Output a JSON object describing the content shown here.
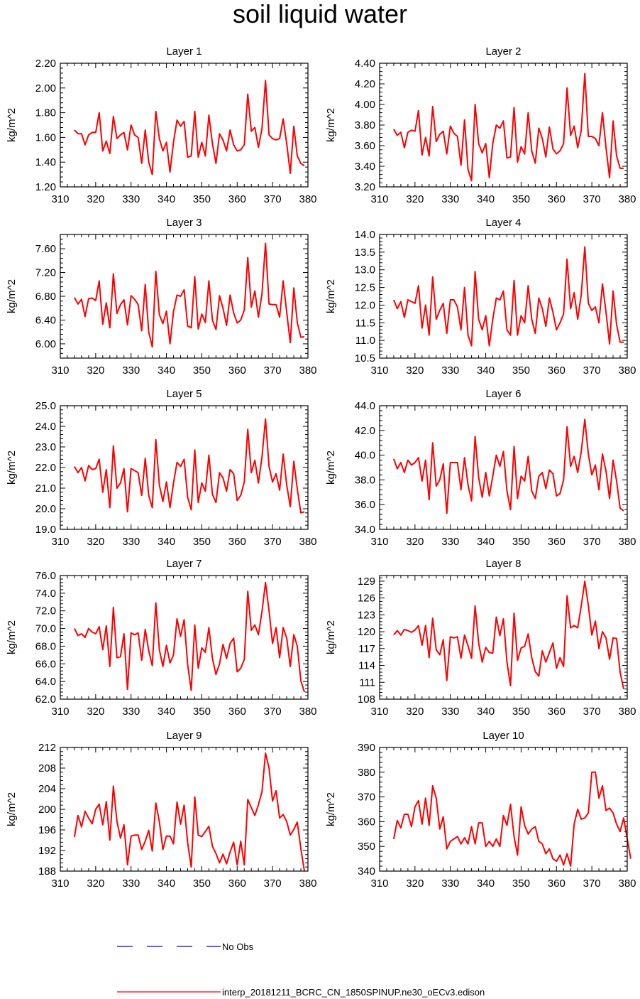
{
  "title": "soil liquid water",
  "ylabel": "kg/m^2",
  "line_color": "#ff0000",
  "obs_color": "#0000ff",
  "legend": {
    "obs_label": "No Obs",
    "model_label": "interp_20181211_BCRC_CN_1850SPINUP.ne30_oECv3.edison"
  },
  "chart_data": [
    {
      "type": "line",
      "title": "Layer 1",
      "xlabel": "",
      "ylabel": "kg/m^2",
      "xlim": [
        310,
        380
      ],
      "ylim": [
        1.2,
        2.2
      ],
      "xticks": [
        "310",
        "320",
        "330",
        "340",
        "350",
        "360",
        "370",
        "380"
      ],
      "yticks": [
        "1.20",
        "1.40",
        "1.60",
        "1.80",
        "2.00",
        "2.20"
      ],
      "x_start": 314,
      "series": [
        {
          "values": [
            1.66,
            1.63,
            1.63,
            1.54,
            1.62,
            1.64,
            1.64,
            1.8,
            1.49,
            1.57,
            1.47,
            1.77,
            1.59,
            1.62,
            1.64,
            1.5,
            1.7,
            1.62,
            1.6,
            1.39,
            1.66,
            1.4,
            1.3,
            1.81,
            1.59,
            1.49,
            1.56,
            1.32,
            1.56,
            1.74,
            1.69,
            1.73,
            1.44,
            1.45,
            1.81,
            1.44,
            1.56,
            1.45,
            1.78,
            1.55,
            1.39,
            1.63,
            1.58,
            1.49,
            1.66,
            1.54,
            1.49,
            1.5,
            1.54,
            1.95,
            1.65,
            1.68,
            1.52,
            1.67,
            2.06,
            1.62,
            1.59,
            1.58,
            1.59,
            1.75,
            1.55,
            1.31,
            1.69,
            1.45,
            1.39,
            1.37
          ]
        }
      ]
    },
    {
      "type": "line",
      "title": "Layer 2",
      "xlabel": "",
      "ylabel": "kg/m^2",
      "xlim": [
        310,
        380
      ],
      "ylim": [
        3.2,
        4.4
      ],
      "xticks": [
        "310",
        "320",
        "330",
        "340",
        "350",
        "360",
        "370",
        "380"
      ],
      "yticks": [
        "3.20",
        "3.40",
        "3.60",
        "3.80",
        "4.00",
        "4.20",
        "4.40"
      ],
      "x_start": 314,
      "series": [
        {
          "values": [
            3.76,
            3.7,
            3.73,
            3.58,
            3.73,
            3.75,
            3.74,
            3.94,
            3.51,
            3.68,
            3.5,
            3.98,
            3.64,
            3.71,
            3.74,
            3.52,
            3.79,
            3.72,
            3.69,
            3.41,
            3.85,
            3.37,
            3.26,
            4.0,
            3.62,
            3.53,
            3.62,
            3.29,
            3.62,
            3.8,
            3.77,
            3.84,
            3.48,
            3.49,
            3.97,
            3.44,
            3.59,
            3.52,
            3.92,
            3.55,
            3.43,
            3.77,
            3.67,
            3.49,
            3.78,
            3.57,
            3.52,
            3.55,
            3.62,
            4.16,
            3.7,
            3.79,
            3.58,
            3.75,
            4.3,
            3.69,
            3.69,
            3.67,
            3.6,
            3.92,
            3.58,
            3.29,
            3.84,
            3.5,
            3.38,
            3.38
          ]
        }
      ]
    },
    {
      "type": "line",
      "title": "Layer 3",
      "xlabel": "",
      "ylabel": "kg/m^2",
      "xlim": [
        310,
        380
      ],
      "ylim": [
        5.76,
        7.84
      ],
      "xticks": [
        "310",
        "320",
        "330",
        "340",
        "350",
        "360",
        "370",
        "380"
      ],
      "yticks": [
        "6.00",
        "6.40",
        "6.80",
        "7.20",
        "7.60"
      ],
      "x_start": 314,
      "series": [
        {
          "values": [
            6.78,
            6.67,
            6.75,
            6.46,
            6.76,
            6.77,
            6.73,
            7.06,
            6.33,
            6.69,
            6.27,
            7.18,
            6.51,
            6.66,
            6.74,
            6.32,
            6.81,
            6.75,
            6.66,
            6.22,
            7.0,
            6.2,
            5.95,
            7.22,
            6.49,
            6.34,
            6.55,
            6.0,
            6.54,
            6.82,
            6.8,
            6.91,
            6.3,
            6.27,
            7.13,
            6.25,
            6.5,
            6.36,
            7.06,
            6.4,
            6.24,
            6.81,
            6.6,
            6.31,
            6.82,
            6.52,
            6.35,
            6.4,
            6.57,
            7.45,
            6.62,
            6.89,
            6.45,
            6.84,
            7.69,
            6.67,
            6.66,
            6.66,
            6.45,
            7.06,
            6.53,
            6.02,
            6.94,
            6.36,
            6.11,
            6.12
          ]
        }
      ]
    },
    {
      "type": "line",
      "title": "Layer 4",
      "xlabel": "",
      "ylabel": "kg/m^2",
      "xlim": [
        310,
        380
      ],
      "ylim": [
        10.5,
        14.0
      ],
      "xticks": [
        "310",
        "320",
        "330",
        "340",
        "350",
        "360",
        "370",
        "380"
      ],
      "yticks": [
        "10.5",
        "11.0",
        "11.5",
        "12.0",
        "12.5",
        "13.0",
        "13.5",
        "14.0"
      ],
      "x_start": 314,
      "series": [
        {
          "values": [
            12.15,
            11.9,
            12.1,
            11.65,
            12.15,
            12.1,
            12.05,
            12.55,
            11.35,
            12.0,
            11.15,
            12.8,
            11.6,
            11.85,
            12.05,
            11.2,
            12.15,
            12.15,
            11.95,
            11.3,
            12.5,
            11.15,
            10.85,
            12.95,
            11.6,
            11.3,
            11.7,
            10.85,
            11.6,
            12.2,
            12.15,
            12.4,
            11.3,
            11.15,
            12.7,
            11.15,
            11.7,
            11.5,
            12.55,
            11.6,
            11.2,
            12.2,
            11.9,
            11.4,
            12.2,
            11.8,
            11.3,
            11.5,
            11.75,
            13.3,
            11.9,
            12.35,
            11.6,
            12.3,
            13.65,
            12.05,
            11.85,
            11.95,
            11.5,
            12.6,
            11.8,
            10.9,
            12.4,
            11.45,
            10.95,
            10.95
          ]
        }
      ]
    },
    {
      "type": "line",
      "title": "Layer 5",
      "xlabel": "",
      "ylabel": "kg/m^2",
      "xlim": [
        310,
        380
      ],
      "ylim": [
        19.0,
        25.0
      ],
      "xticks": [
        "310",
        "320",
        "330",
        "340",
        "350",
        "360",
        "370",
        "380"
      ],
      "yticks": [
        "19.0",
        "20.0",
        "21.0",
        "22.0",
        "23.0",
        "24.0",
        "25.0"
      ],
      "x_start": 314,
      "series": [
        {
          "values": [
            22.05,
            21.75,
            22.0,
            21.35,
            22.1,
            21.9,
            21.95,
            22.4,
            20.8,
            21.9,
            20.05,
            23.05,
            21.0,
            21.25,
            21.95,
            19.85,
            21.95,
            21.85,
            21.75,
            20.65,
            22.45,
            20.65,
            20.05,
            23.35,
            21.15,
            20.35,
            21.3,
            20.05,
            21.25,
            22.25,
            22.05,
            22.4,
            20.55,
            19.95,
            22.85,
            20.3,
            21.25,
            20.85,
            22.6,
            20.7,
            20.3,
            21.75,
            21.5,
            20.85,
            21.9,
            21.7,
            20.4,
            20.65,
            21.3,
            23.85,
            21.75,
            22.35,
            21.25,
            22.5,
            24.35,
            22.05,
            21.3,
            21.7,
            20.9,
            22.65,
            21.15,
            20.1,
            22.3,
            20.95,
            19.8,
            19.85
          ]
        }
      ]
    },
    {
      "type": "line",
      "title": "Layer 6",
      "xlabel": "",
      "ylabel": "kg/m^2",
      "xlim": [
        310,
        380
      ],
      "ylim": [
        34.0,
        44.0
      ],
      "xticks": [
        "310",
        "320",
        "330",
        "340",
        "350",
        "360",
        "370",
        "380"
      ],
      "yticks": [
        "34.0",
        "36.0",
        "38.0",
        "40.0",
        "42.0",
        "44.0"
      ],
      "x_start": 314,
      "series": [
        {
          "values": [
            39.7,
            38.9,
            39.4,
            38.6,
            39.6,
            39.2,
            39.4,
            39.8,
            37.9,
            39.6,
            36.4,
            41.0,
            37.5,
            38.0,
            39.3,
            35.3,
            39.4,
            39.4,
            39.4,
            37.2,
            39.8,
            37.6,
            36.3,
            41.5,
            38.2,
            36.6,
            38.6,
            36.7,
            38.3,
            40.0,
            39.1,
            40.3,
            37.1,
            35.6,
            40.7,
            36.5,
            38.3,
            37.9,
            39.9,
            37.1,
            36.5,
            38.3,
            38.6,
            37.3,
            38.8,
            38.5,
            36.7,
            36.9,
            38.0,
            42.3,
            39.1,
            39.9,
            38.6,
            40.3,
            42.9,
            40.1,
            38.4,
            39.2,
            37.2,
            40.1,
            38.7,
            36.5,
            39.6,
            37.9,
            35.7,
            35.5
          ]
        }
      ]
    },
    {
      "type": "line",
      "title": "Layer 7",
      "xlabel": "",
      "ylabel": "kg/m^2",
      "xlim": [
        310,
        380
      ],
      "ylim": [
        62.0,
        76.0
      ],
      "xticks": [
        "310",
        "320",
        "330",
        "340",
        "350",
        "360",
        "370",
        "380"
      ],
      "yticks": [
        "62.0",
        "64.0",
        "66.0",
        "68.0",
        "70.0",
        "72.0",
        "74.0",
        "76.0"
      ],
      "x_start": 314,
      "series": [
        {
          "values": [
            70.0,
            69.2,
            69.4,
            69.0,
            70.0,
            69.6,
            69.4,
            70.2,
            67.6,
            70.3,
            65.7,
            72.4,
            66.7,
            66.8,
            69.4,
            63.1,
            69.5,
            69.3,
            69.5,
            66.4,
            69.9,
            67.5,
            65.8,
            72.9,
            67.6,
            65.7,
            68.1,
            66.1,
            67.0,
            71.1,
            69.1,
            71.0,
            65.9,
            63.0,
            70.4,
            65.5,
            67.8,
            67.3,
            70.1,
            66.6,
            64.8,
            66.0,
            68.2,
            66.6,
            68.3,
            68.9,
            65.1,
            65.5,
            66.5,
            74.2,
            69.8,
            70.4,
            69.3,
            71.9,
            75.2,
            72.0,
            68.3,
            70.1,
            66.7,
            70.1,
            68.9,
            65.7,
            69.3,
            68.0,
            64.1,
            62.8
          ]
        }
      ]
    },
    {
      "type": "line",
      "title": "Layer 8",
      "xlabel": "",
      "ylabel": "kg/m^2",
      "xlim": [
        310,
        380
      ],
      "ylim": [
        108,
        130
      ],
      "xticks": [
        "310",
        "320",
        "330",
        "340",
        "350",
        "360",
        "370",
        "380"
      ],
      "yticks": [
        "108",
        "111",
        "114",
        "117",
        "120",
        "123",
        "126",
        "129"
      ],
      "x_start": 314,
      "series": [
        {
          "values": [
            119.4,
            120.2,
            119.4,
            120.4,
            120.2,
            119.9,
            120.3,
            121.1,
            117.6,
            121.1,
            115.4,
            122.4,
            116.8,
            115.9,
            118.6,
            111.3,
            119.1,
            118.9,
            119.1,
            115.3,
            119.4,
            117.5,
            115.3,
            124.6,
            118.0,
            114.6,
            117.2,
            116.3,
            116.2,
            122.6,
            119.3,
            122.3,
            114.6,
            110.4,
            123.3,
            114.9,
            117.1,
            117.4,
            119.6,
            115.4,
            112.9,
            112.1,
            116.6,
            114.6,
            116.3,
            118.0,
            113.5,
            115.4,
            113.8,
            126.4,
            120.7,
            121.1,
            120.7,
            124.6,
            129.0,
            124.7,
            119.4,
            121.9,
            117.0,
            120.0,
            118.9,
            115.1,
            118.9,
            118.8,
            112.8,
            109.8
          ]
        }
      ]
    },
    {
      "type": "line",
      "title": "Layer 9",
      "xlabel": "",
      "ylabel": "kg/m^2",
      "xlim": [
        310,
        380
      ],
      "ylim": [
        188,
        212
      ],
      "xticks": [
        "310",
        "320",
        "330",
        "340",
        "350",
        "360",
        "370",
        "380"
      ],
      "yticks": [
        "188",
        "192",
        "196",
        "200",
        "204",
        "208",
        "212"
      ],
      "x_start": 314,
      "series": [
        {
          "values": [
            194.6,
            198.8,
            196.6,
            199.6,
            198.3,
            197.2,
            200.0,
            201.0,
            197.0,
            201.5,
            194.0,
            204.5,
            197.7,
            194.4,
            197.0,
            189.2,
            194.8,
            195.0,
            195.0,
            192.2,
            193.8,
            195.9,
            191.9,
            201.2,
            197.6,
            192.2,
            194.8,
            194.8,
            193.3,
            201.4,
            197.1,
            200.8,
            193.5,
            188.8,
            202.4,
            195.0,
            194.7,
            195.7,
            196.7,
            192.8,
            191.4,
            189.6,
            191.3,
            189.4,
            191.7,
            193.6,
            189.2,
            193.8,
            189.2,
            201.9,
            200.3,
            198.8,
            200.9,
            203.4,
            210.9,
            208.0,
            201.6,
            203.6,
            198.3,
            199.0,
            197.6,
            195.0,
            196.1,
            197.5,
            192.4,
            188.0
          ]
        }
      ]
    },
    {
      "type": "line",
      "title": "Layer 10",
      "xlabel": "",
      "ylabel": "kg/m^2",
      "xlim": [
        310,
        380
      ],
      "ylim": [
        340,
        390
      ],
      "xticks": [
        "310",
        "320",
        "330",
        "340",
        "350",
        "360",
        "370",
        "380"
      ],
      "yticks": [
        "340",
        "350",
        "360",
        "370",
        "380",
        "390"
      ],
      "x_start": 314,
      "series": [
        {
          "values": [
            353,
            360.5,
            357.5,
            363,
            363,
            358,
            366,
            368.5,
            359,
            369.5,
            358.5,
            374.5,
            369.5,
            357,
            362,
            349,
            352,
            353,
            354,
            351,
            353.5,
            351,
            358,
            351,
            359.5,
            359.5,
            350,
            352,
            350,
            353,
            350,
            362.5,
            358.5,
            367,
            354,
            346.5,
            366,
            358.5,
            355,
            357,
            358,
            352,
            351,
            347,
            349,
            345,
            344,
            346.5,
            342.5,
            347,
            342,
            359,
            365,
            361,
            361.5,
            363.5,
            380,
            380,
            369.5,
            374.5,
            364.5,
            365.5,
            363.5,
            359,
            356,
            361.5,
            353,
            345
          ]
        }
      ]
    }
  ]
}
